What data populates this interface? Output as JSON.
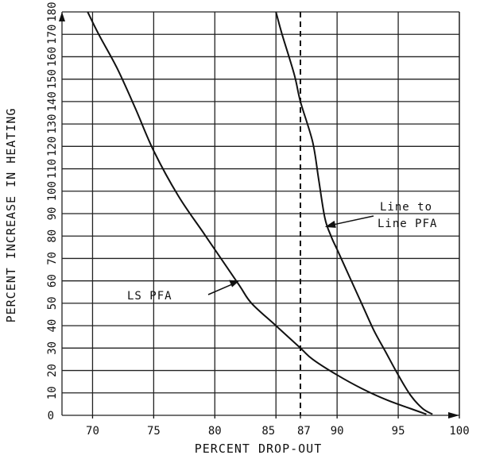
{
  "chart_data": {
    "type": "line",
    "xlabel": "PERCENT DROP-OUT",
    "ylabel": "PERCENT INCREASE IN HEATING",
    "xlim": [
      67.5,
      100
    ],
    "ylim": [
      0,
      180
    ],
    "x_ticks": [
      70,
      75,
      80,
      85,
      87,
      90,
      95,
      100
    ],
    "x_tick_labels": [
      "70",
      "75",
      "80",
      "85",
      "87",
      "90",
      "95",
      "100"
    ],
    "y_ticks": [
      0,
      10,
      20,
      30,
      40,
      50,
      60,
      70,
      80,
      90,
      100,
      110,
      120,
      130,
      140,
      150,
      160,
      170,
      180
    ],
    "y_tick_labels": [
      "0",
      "10",
      "20",
      "30",
      "40",
      "50",
      "60",
      "70",
      "80",
      "90",
      "100",
      "110",
      "120",
      "130",
      "140",
      "150",
      "160",
      "170",
      "180"
    ],
    "grid": true,
    "reference_line": {
      "x": 87,
      "style": "dashed"
    },
    "series": [
      {
        "name": "LS PFA",
        "points": [
          [
            69.6,
            180
          ],
          [
            70.5,
            170
          ],
          [
            72,
            155
          ],
          [
            73.5,
            137
          ],
          [
            75,
            118
          ],
          [
            77,
            98
          ],
          [
            79,
            82
          ],
          [
            80,
            74
          ],
          [
            82,
            58
          ],
          [
            83,
            50
          ],
          [
            85,
            40
          ],
          [
            87,
            30
          ],
          [
            88,
            25
          ],
          [
            90,
            18
          ],
          [
            92,
            12
          ],
          [
            94,
            7
          ],
          [
            96,
            3
          ],
          [
            97.3,
            0.5
          ]
        ]
      },
      {
        "name": "Line to Line PFA",
        "points": [
          [
            85,
            180
          ],
          [
            85.5,
            170
          ],
          [
            86.5,
            152
          ],
          [
            87,
            140
          ],
          [
            88,
            122
          ],
          [
            88.5,
            105
          ],
          [
            89,
            88
          ],
          [
            89.5,
            80
          ],
          [
            90,
            74
          ],
          [
            91,
            62
          ],
          [
            92,
            50
          ],
          [
            93,
            38
          ],
          [
            94,
            28
          ],
          [
            95,
            18
          ],
          [
            96,
            9
          ],
          [
            97,
            3
          ],
          [
            97.8,
            0.5
          ]
        ]
      }
    ],
    "annotations": [
      {
        "text": "LS PFA",
        "series": "LS PFA",
        "at": [
          82,
          60
        ]
      },
      {
        "text": "Line to\nLine PFA",
        "lines": [
          "Line to",
          "Line PFA"
        ],
        "series": "Line to Line PFA",
        "at": [
          89,
          84
        ]
      }
    ]
  }
}
